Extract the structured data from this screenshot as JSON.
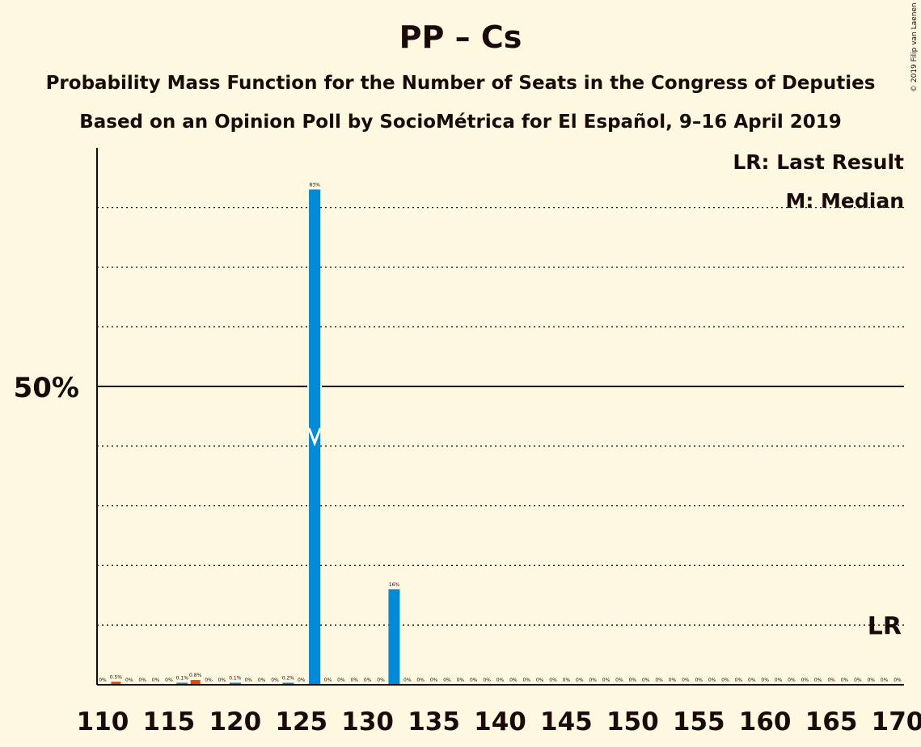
{
  "title": "PP – Cs",
  "subtitle1": "Probability Mass Function for the Number of Seats in the Congress of Deputies",
  "subtitle2": "Based on an Opinion Poll by SocioMétrica for El Español, 9–16 April 2019",
  "copyright": "© 2019 Filip van Laenen",
  "legend": {
    "last_result": "LR: Last Result",
    "median": "M: Median"
  },
  "colors": {
    "background": "#fff8e1",
    "bar": "#008ad8",
    "last_result_bar": "#e04a00",
    "text": "#1a0a0a"
  },
  "chart_data": {
    "type": "bar",
    "x": [
      110,
      111,
      112,
      113,
      114,
      115,
      116,
      117,
      118,
      119,
      120,
      121,
      122,
      123,
      124,
      125,
      126,
      127,
      128,
      129,
      130,
      131,
      132,
      133,
      134,
      135,
      136,
      137,
      138,
      139,
      140,
      141,
      142,
      143,
      144,
      145,
      146,
      147,
      148,
      149,
      150,
      151,
      152,
      153,
      154,
      155,
      156,
      157,
      158,
      159,
      160,
      161,
      162,
      163,
      164,
      165,
      166,
      167,
      168,
      169,
      170
    ],
    "values": [
      0,
      0.5,
      0,
      0,
      0,
      0,
      0.1,
      0.8,
      0,
      0,
      0.1,
      0,
      0,
      0,
      0.2,
      0,
      83,
      0,
      0,
      0,
      0,
      0,
      16,
      0,
      0,
      0,
      0,
      0,
      0,
      0,
      0,
      0,
      0,
      0,
      0,
      0,
      0,
      0,
      0,
      0,
      0,
      0,
      0,
      0,
      0,
      0,
      0,
      0,
      0,
      0,
      0,
      0,
      0,
      0,
      0,
      0,
      0,
      0,
      0,
      0,
      0
    ],
    "value_labels": [
      "0%",
      "0.5%",
      "0%",
      "0%",
      "0%",
      "0%",
      "0.1%",
      "0.8%",
      "0%",
      "0%",
      "0.1%",
      "0%",
      "0%",
      "0%",
      "0.2%",
      "0%",
      "83%",
      "0%",
      "0%",
      "0%",
      "0%",
      "0%",
      "16%",
      "0%",
      "0%",
      "0%",
      "0%",
      "0%",
      "0%",
      "0%",
      "0%",
      "0%",
      "0%",
      "0%",
      "0%",
      "0%",
      "0%",
      "0%",
      "0%",
      "0%",
      "0%",
      "0%",
      "0%",
      "0%",
      "0%",
      "0%",
      "0%",
      "0%",
      "0%",
      "0%",
      "0%",
      "0%",
      "0%",
      "0%",
      "0%",
      "0%",
      "0%",
      "0%",
      "0%",
      "0%",
      "0%"
    ],
    "highlight_x": [
      111,
      117
    ],
    "x_tick_labels": [
      "110",
      "115",
      "120",
      "125",
      "130",
      "135",
      "140",
      "145",
      "150",
      "155",
      "160",
      "165",
      "170"
    ],
    "y_tick_label": "50%",
    "ylim": [
      0,
      90
    ],
    "y_gridlines": [
      10,
      20,
      30,
      40,
      60,
      70,
      80
    ],
    "majority_line": 50,
    "median_x": 126,
    "median_marker": "M",
    "last_result_x": 169,
    "last_result_marker": "LR"
  }
}
